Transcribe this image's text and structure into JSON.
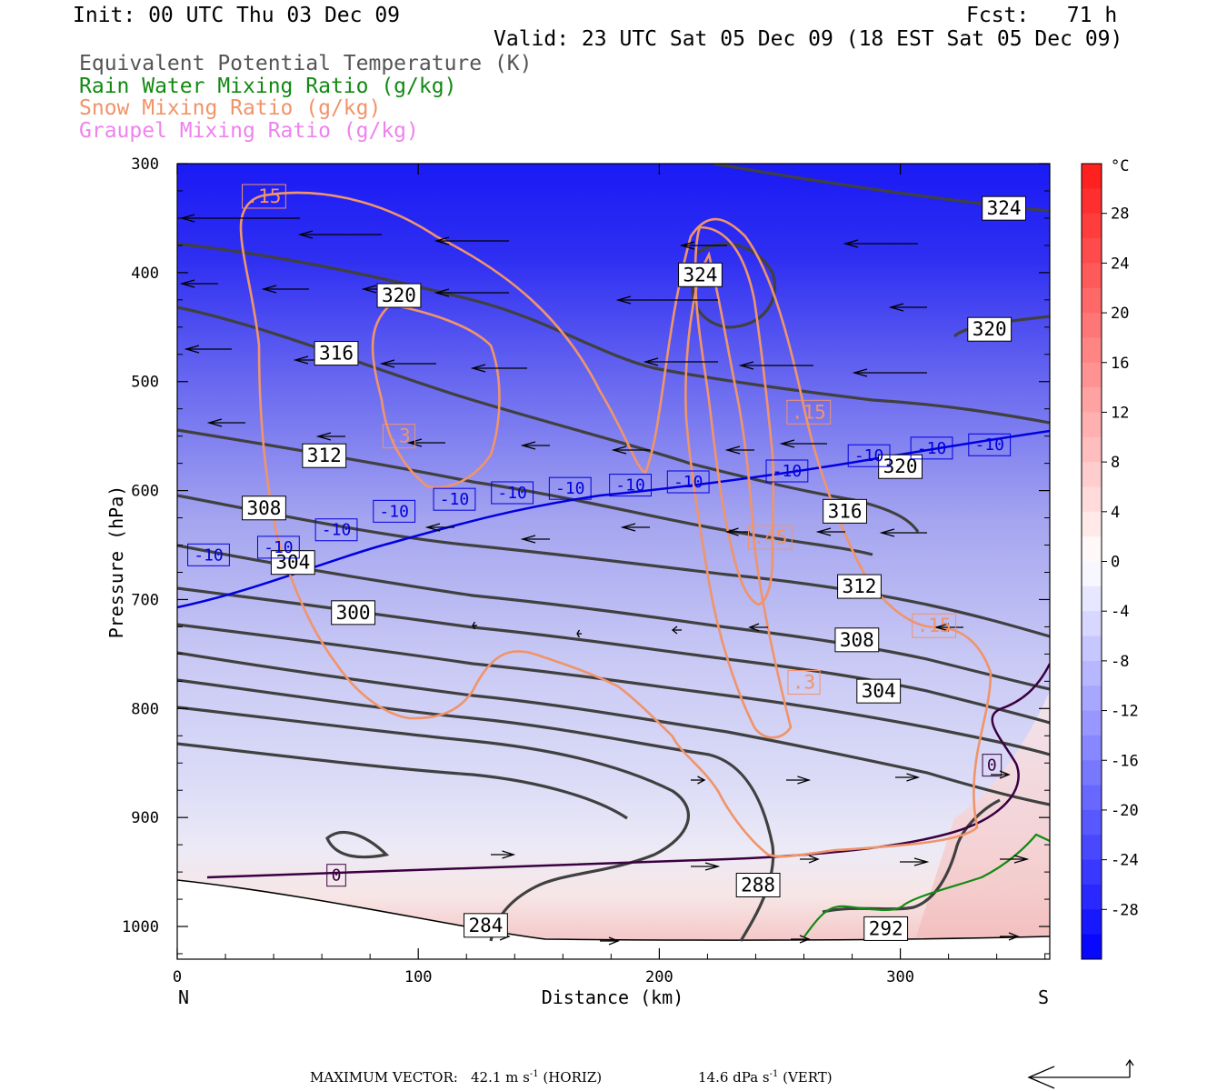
{
  "header": {
    "init": "Init: 00 UTC Thu 03 Dec 09",
    "fcst": "Fcst:   71 h",
    "valid": "Valid: 23 UTC Sat 05 Dec 09 (18 EST Sat 05 Dec 09)",
    "fields": [
      {
        "label": "Equivalent Potential Temperature (K)",
        "color": "#555555"
      },
      {
        "label": "Rain Water Mixing Ratio (g/kg)",
        "color": "#128a12"
      },
      {
        "label": "Snow Mixing Ratio (g/kg)",
        "color": "#f0946a"
      },
      {
        "label": "Graupel Mixing Ratio (g/kg)",
        "color": "#ee82ee"
      }
    ]
  },
  "chart_data": {
    "type": "cross-section",
    "xlabel": "Distance (km)",
    "ylabel": "Pressure (hPa)",
    "xlim": [
      0,
      362
    ],
    "ylim": [
      1030,
      300
    ],
    "x_ticks": [
      0,
      100,
      200,
      300
    ],
    "y_ticks": [
      300,
      400,
      500,
      600,
      700,
      800,
      900,
      1000
    ],
    "left_end": "N",
    "right_end": "S",
    "colorbar": {
      "unit": "°C",
      "ticks": [
        28,
        24,
        20,
        16,
        12,
        8,
        4,
        0,
        -4,
        -8,
        -12,
        -16,
        -20,
        -24,
        -28
      ],
      "range": [
        -32,
        32
      ]
    },
    "theta_e_labels": [
      {
        "v": "324",
        "x": 343,
        "p": 341
      },
      {
        "v": "324",
        "x": 217,
        "p": 402
      },
      {
        "v": "320",
        "x": 92,
        "p": 421
      },
      {
        "v": "320",
        "x": 337,
        "p": 452
      },
      {
        "v": "316",
        "x": 66,
        "p": 474
      },
      {
        "v": "312",
        "x": 61,
        "p": 568
      },
      {
        "v": "320",
        "x": 300,
        "p": 578
      },
      {
        "v": "308",
        "x": 36,
        "p": 616
      },
      {
        "v": "316",
        "x": 277,
        "p": 619
      },
      {
        "v": "304",
        "x": 48,
        "p": 666
      },
      {
        "v": "300",
        "x": 73,
        "p": 712
      },
      {
        "v": "312",
        "x": 283,
        "p": 688
      },
      {
        "v": "308",
        "x": 282,
        "p": 737
      },
      {
        "v": "304",
        "x": 291,
        "p": 784
      },
      {
        "v": "288",
        "x": 241,
        "p": 962
      },
      {
        "v": "284",
        "x": 128,
        "p": 999
      },
      {
        "v": "292",
        "x": 294,
        "p": 1002
      }
    ],
    "isotherm_labels": [
      {
        "v": "-10",
        "x": 13,
        "p": 659
      },
      {
        "v": "-10",
        "x": 42,
        "p": 652
      },
      {
        "v": "-10",
        "x": 66,
        "p": 636
      },
      {
        "v": "-10",
        "x": 90,
        "p": 619
      },
      {
        "v": "-10",
        "x": 115,
        "p": 608
      },
      {
        "v": "-10",
        "x": 139,
        "p": 602
      },
      {
        "v": "-10",
        "x": 163,
        "p": 598
      },
      {
        "v": "-10",
        "x": 188,
        "p": 595
      },
      {
        "v": "-10",
        "x": 212,
        "p": 592
      },
      {
        "v": "-10",
        "x": 253,
        "p": 582
      },
      {
        "v": "-10",
        "x": 287,
        "p": 568
      },
      {
        "v": "-10",
        "x": 313,
        "p": 561
      },
      {
        "v": "-10",
        "x": 337,
        "p": 558
      },
      {
        "v": "0",
        "x": 66,
        "p": 953
      },
      {
        "v": "0",
        "x": 338,
        "p": 852
      }
    ],
    "snow_labels": [
      {
        "v": ".15",
        "x": 36,
        "p": 330
      },
      {
        "v": ".3",
        "x": 92,
        "p": 550
      },
      {
        "v": ".15",
        "x": 262,
        "p": 528
      },
      {
        "v": ".45",
        "x": 246,
        "p": 643
      },
      {
        "v": ".15",
        "x": 314,
        "p": 724
      },
      {
        "v": ".3",
        "x": 260,
        "p": 776
      }
    ]
  },
  "footer": {
    "max_vector": "MAXIMUM VECTOR:",
    "horiz_value": "42.1 m s",
    "horiz_exp": "-1",
    "horiz_unit": " (HORIZ)",
    "vert_value": "14.6 dPa s",
    "vert_exp": "-1",
    "vert_unit": " (VERT)"
  }
}
